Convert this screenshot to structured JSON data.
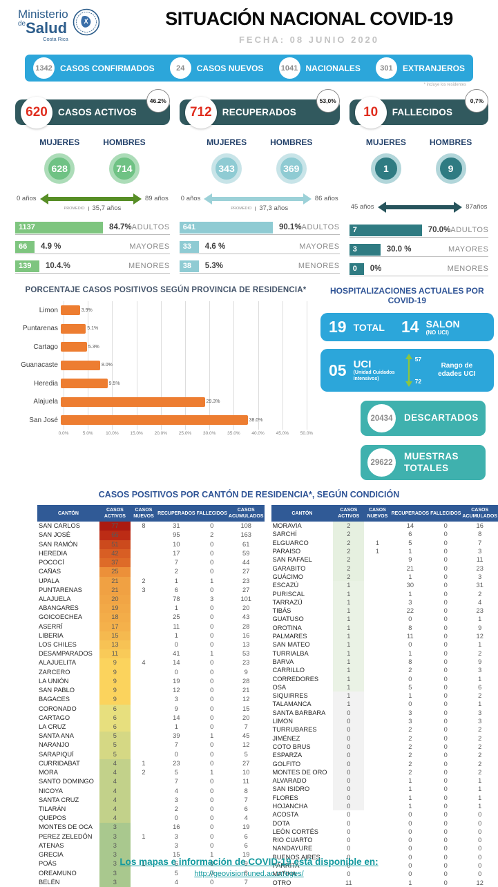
{
  "header": {
    "ministry": {
      "line1": "Ministerio",
      "de": "de",
      "line2": "Salud",
      "line3": "Costa Rica"
    },
    "title": "SITUACIÓN NACIONAL COVID-19",
    "date": "FECHA: 08 JUNIO 2020"
  },
  "summary_bar": {
    "color": "#2CA6DA",
    "items": [
      {
        "value": "1342",
        "label": "CASOS CONFIRMADOS"
      },
      {
        "value": "24",
        "label": "CASOS NUEVOS"
      },
      {
        "value": "1041",
        "label": "NACIONALES"
      },
      {
        "value": "301",
        "label": "EXTRANJEROS"
      }
    ],
    "footnote": "* incluye los residentes"
  },
  "panels": [
    {
      "value": "620",
      "label": "CASOS ACTIVOS",
      "percent": "46.2%",
      "gender": {
        "mujeres_label": "MUJERES",
        "hombres_label": "HOMBRES",
        "mujeres": "628",
        "hombres": "714"
      },
      "age": {
        "min": "0 años",
        "max": "89 años",
        "promedio_label": "PROMEDIO",
        "promedio": "35,7 años"
      },
      "breakdown": [
        {
          "value": "1137",
          "percent": "84.7%",
          "label": "ADULTOS",
          "pct": 84.7
        },
        {
          "value": "66",
          "percent": "4.9 %",
          "label": "MAYORES",
          "pct": 4.9
        },
        {
          "value": "139",
          "percent": "10.4.%",
          "label": "MENORES",
          "pct": 10.4
        }
      ],
      "colors": {
        "accent": "#6FC284",
        "ring": "#ACDCB8",
        "bar": "#7EC57F",
        "arrow": "#578E26",
        "header": "#31595E",
        "number": "#E02D1E"
      }
    },
    {
      "value": "712",
      "label": "RECUPERADOS",
      "percent": "53,0%",
      "gender": {
        "mujeres_label": "MUJERES",
        "hombres_label": "HOMBRES",
        "mujeres": "343",
        "hombres": "369"
      },
      "age": {
        "min": "0 años",
        "max": "86 años",
        "promedio_label": "PROMEDIO",
        "promedio": "37,3 años"
      },
      "breakdown": [
        {
          "value": "641",
          "percent": "90.1%",
          "label": "ADULTOS",
          "pct": 90.1
        },
        {
          "value": "33",
          "percent": "4.6 %",
          "label": "MAYORES",
          "pct": 4.6
        },
        {
          "value": "38",
          "percent": "5.3%",
          "label": "MENORES",
          "pct": 5.3
        }
      ],
      "colors": {
        "accent": "#8FCBD3",
        "ring": "#C8E4E8",
        "bar": "#8FCBD3",
        "arrow": "#9CD1D8",
        "header": "#31595E",
        "number": "#E02D1E"
      }
    },
    {
      "value": "10",
      "label": "FALLECIDOS",
      "percent": "0,7%",
      "gender": {
        "mujeres_label": "MUJERES",
        "hombres_label": "HOMBRES",
        "mujeres": "1",
        "hombres": "9"
      },
      "age": {
        "min": "45 años",
        "max": "87años",
        "promedio_label": "",
        "promedio": ""
      },
      "breakdown": [
        {
          "value": "7",
          "percent": "70.0%",
          "label": "ADULTOS",
          "pct": 70.0
        },
        {
          "value": "3",
          "percent": "30.0 %",
          "label": "MAYORES",
          "pct": 30.0
        },
        {
          "value": "0",
          "percent": "0%",
          "label": "MENORES",
          "pct": 0
        }
      ],
      "colors": {
        "accent": "#2F7B82",
        "ring": "#B2D6DA",
        "bar": "#2F7B82",
        "arrow": "#27545C",
        "header": "#31595E",
        "number": "#E02D1E"
      }
    }
  ],
  "chart_data": {
    "type": "bar",
    "orientation": "horizontal",
    "title": "PORCENTAJE CASOS POSITIVOS SEGÚN PROVINCIA DE RESIDENCIA*",
    "categories": [
      "Limon",
      "Puntarenas",
      "Cartago",
      "Guanacaste",
      "Heredia",
      "Alajuela",
      "San José"
    ],
    "values": [
      3.9,
      5.1,
      5.3,
      8.0,
      9.5,
      29.3,
      38.0
    ],
    "value_labels": [
      "3.9%",
      "5.1%",
      "5.3%",
      "8.0%",
      "9.5%",
      "29.3%",
      "38.0%"
    ],
    "xlim": [
      0,
      50
    ],
    "x_ticks": [
      "0.0%",
      "5.0%",
      "10.0%",
      "15.0%",
      "20.0%",
      "25.0%",
      "30.0%",
      "35.0%",
      "40.0%",
      "45.0%",
      "50.0%"
    ],
    "bar_color": "#ED7D31",
    "grid": true,
    "legend": false
  },
  "hospital": {
    "title": "HOSPITALIZACIONES ACTUALES POR COVID-19",
    "box_color": "#2CA6DA",
    "teal_color": "#3FB1AE",
    "total": {
      "value": "19",
      "label": "TOTAL"
    },
    "salon": {
      "value": "14",
      "label": "SALON",
      "sublabel": "(NO UCI)"
    },
    "uci": {
      "value": "05",
      "label": "UCI",
      "sublabel": "(Unidad Cuidados Intensivos)",
      "range_top": "57",
      "range_bottom": "72",
      "range_label": "Rango de edades UCI",
      "arrow_color": "#8DC63F"
    },
    "descartados": {
      "value": "20434",
      "label": "DESCARTADOS"
    },
    "muestras": {
      "value": "29622",
      "label": "MUESTRAS TOTALES"
    }
  },
  "cantons": {
    "title": "CASOS POSITIVOS POR CANTÓN DE RESIDENCIA*, SEGÚN CONDICIÓN",
    "header_color": "#305A96",
    "columns": [
      "CANTÓN",
      "CASOS ACTIVOS",
      "CASOS NUEVOS",
      "RECUPERADOS",
      "FALLECIDOS",
      "CASOS ACUMULADOS"
    ],
    "left_rows": [
      [
        "SAN CARLOS",
        "77",
        "8",
        "31",
        "0",
        "108",
        "#AB1A10"
      ],
      [
        "SAN JOSÉ",
        "66",
        "",
        "95",
        "2",
        "163",
        "#BC2C15"
      ],
      [
        "SAN RAMÓN",
        "51",
        "",
        "10",
        "0",
        "61",
        "#CC4A1D"
      ],
      [
        "HEREDIA",
        "42",
        "",
        "17",
        "0",
        "59",
        "#D85E24"
      ],
      [
        "POCOCÍ",
        "37",
        "",
        "7",
        "0",
        "44",
        "#DE6B28"
      ],
      [
        "CAÑAS",
        "25",
        "",
        "2",
        "0",
        "27",
        "#EC9039"
      ],
      [
        "UPALA",
        "21",
        "2",
        "1",
        "1",
        "23",
        "#F0A143"
      ],
      [
        "PUNTARENAS",
        "21",
        "3",
        "6",
        "0",
        "27",
        "#F0A143"
      ],
      [
        "ALAJUELA",
        "20",
        "",
        "78",
        "3",
        "101",
        "#F1A545"
      ],
      [
        "ABANGARES",
        "19",
        "",
        "1",
        "0",
        "20",
        "#F2A947"
      ],
      [
        "GOICOECHEA",
        "18",
        "",
        "25",
        "0",
        "43",
        "#F3AD49"
      ],
      [
        "ASERRÍ",
        "17",
        "",
        "11",
        "0",
        "28",
        "#F4B14B"
      ],
      [
        "LIBERIA",
        "15",
        "",
        "1",
        "0",
        "16",
        "#F5B94F"
      ],
      [
        "LOS CHILES",
        "13",
        "",
        "0",
        "0",
        "13",
        "#F7C254"
      ],
      [
        "DESAMPARADOS",
        "11",
        "",
        "41",
        "1",
        "53",
        "#F9CA58"
      ],
      [
        "ALAJUELITA",
        "9",
        "4",
        "14",
        "0",
        "23",
        "#FBD35D"
      ],
      [
        "ZARCERO",
        "9",
        "",
        "0",
        "0",
        "9",
        "#FBD35D"
      ],
      [
        "LA UNIÓN",
        "9",
        "",
        "19",
        "0",
        "28",
        "#FBD35D"
      ],
      [
        "SAN PABLO",
        "9",
        "",
        "12",
        "0",
        "21",
        "#FBD35D"
      ],
      [
        "BAGACES",
        "9",
        "",
        "3",
        "0",
        "12",
        "#FBD35D"
      ],
      [
        "CORONADO",
        "6",
        "",
        "9",
        "0",
        "15",
        "#E7DF7E"
      ],
      [
        "CARTAGO",
        "6",
        "",
        "14",
        "0",
        "20",
        "#E7DF7E"
      ],
      [
        "LA CRUZ",
        "6",
        "",
        "1",
        "0",
        "7",
        "#E7DF7E"
      ],
      [
        "SANTA ANA",
        "5",
        "",
        "39",
        "1",
        "45",
        "#D5D884"
      ],
      [
        "NARANJO",
        "5",
        "",
        "7",
        "0",
        "12",
        "#D5D884"
      ],
      [
        "SARAPIQUÍ",
        "5",
        "",
        "0",
        "0",
        "5",
        "#D5D884"
      ],
      [
        "CURRIDABAT",
        "4",
        "1",
        "23",
        "0",
        "27",
        "#C2D18A"
      ],
      [
        "MORA",
        "4",
        "2",
        "5",
        "1",
        "10",
        "#C2D18A"
      ],
      [
        "SANTO DOMINGO",
        "4",
        "",
        "7",
        "0",
        "11",
        "#C2D18A"
      ],
      [
        "NICOYA",
        "4",
        "",
        "4",
        "0",
        "8",
        "#C2D18A"
      ],
      [
        "SANTA CRUZ",
        "4",
        "",
        "3",
        "0",
        "7",
        "#C2D18A"
      ],
      [
        "TILARÁN",
        "4",
        "",
        "2",
        "0",
        "6",
        "#C2D18A"
      ],
      [
        "QUEPOS",
        "4",
        "",
        "0",
        "0",
        "4",
        "#C2D18A"
      ],
      [
        "MONTES DE OCA",
        "3",
        "",
        "16",
        "0",
        "19",
        "#A9C88E"
      ],
      [
        "PEREZ ZELEDÓN",
        "3",
        "1",
        "3",
        "0",
        "6",
        "#A9C88E"
      ],
      [
        "ATENAS",
        "3",
        "",
        "3",
        "0",
        "6",
        "#A9C88E"
      ],
      [
        "GRECIA",
        "3",
        "",
        "15",
        "1",
        "19",
        "#A9C88E"
      ],
      [
        "POÁS",
        "3",
        "1",
        "6",
        "0",
        "9",
        "#A9C88E"
      ],
      [
        "OREAMUNO",
        "3",
        "",
        "5",
        "0",
        "8",
        "#A9C88E"
      ],
      [
        "BELÉN",
        "3",
        "",
        "4",
        "0",
        "7",
        "#A9C88E"
      ]
    ],
    "right_rows": [
      [
        "MORAVIA",
        "2",
        "",
        "14",
        "0",
        "16",
        "#E6F0E0"
      ],
      [
        "SARCHÍ",
        "2",
        "",
        "6",
        "0",
        "8",
        "#E6F0E0"
      ],
      [
        "ELGUARCO",
        "2",
        "1",
        "5",
        "0",
        "7",
        "#E6F0E0"
      ],
      [
        "PARAISO",
        "2",
        "1",
        "1",
        "0",
        "3",
        "#E6F0E0"
      ],
      [
        "SAN RAFAEL",
        "2",
        "",
        "9",
        "0",
        "11",
        "#E6F0E0"
      ],
      [
        "GARABITO",
        "2",
        "",
        "21",
        "0",
        "23",
        "#E6F0E0"
      ],
      [
        "GUÁCIMO",
        "2",
        "",
        "1",
        "0",
        "3",
        "#E6F0E0"
      ],
      [
        "ESCAZÚ",
        "1",
        "",
        "30",
        "0",
        "31",
        "#EAF2E5"
      ],
      [
        "PURISCAL",
        "1",
        "",
        "1",
        "0",
        "2",
        "#EAF2E5"
      ],
      [
        "TARRAZÚ",
        "1",
        "",
        "3",
        "0",
        "4",
        "#EAF2E5"
      ],
      [
        "TIBÁS",
        "1",
        "",
        "22",
        "0",
        "23",
        "#EAF2E5"
      ],
      [
        "GUATUSO",
        "1",
        "",
        "0",
        "0",
        "1",
        "#EAF2E5"
      ],
      [
        "OROTINA",
        "1",
        "",
        "8",
        "0",
        "9",
        "#EAF2E5"
      ],
      [
        "PALMARES",
        "1",
        "",
        "11",
        "0",
        "12",
        "#EAF2E5"
      ],
      [
        "SAN MATEO",
        "1",
        "",
        "0",
        "0",
        "1",
        "#EAF2E5"
      ],
      [
        "TURRIALBA",
        "1",
        "",
        "1",
        "0",
        "2",
        "#EAF2E5"
      ],
      [
        "BARVA",
        "1",
        "",
        "8",
        "0",
        "9",
        "#EAF2E5"
      ],
      [
        "CARRILLO",
        "1",
        "",
        "2",
        "0",
        "3",
        "#EAF2E5"
      ],
      [
        "CORREDORES",
        "1",
        "",
        "0",
        "0",
        "1",
        "#EAF2E5"
      ],
      [
        "OSA",
        "1",
        "",
        "5",
        "0",
        "6",
        "#EAF2E5"
      ],
      [
        "SIQUIRRES",
        "1",
        "",
        "1",
        "0",
        "2",
        "#F2F2F2"
      ],
      [
        "TALAMANCA",
        "1",
        "",
        "0",
        "0",
        "1",
        "#F2F2F2"
      ],
      [
        "SANTA BARBARA",
        "0",
        "",
        "3",
        "0",
        "3",
        "#F2F2F2"
      ],
      [
        "LIMON",
        "0",
        "",
        "3",
        "0",
        "3",
        "#F2F2F2"
      ],
      [
        "TURRUBARES",
        "0",
        "",
        "2",
        "0",
        "2",
        "#F2F2F2"
      ],
      [
        "JIMÉNEZ",
        "0",
        "",
        "2",
        "0",
        "2",
        "#F2F2F2"
      ],
      [
        "COTO BRUS",
        "0",
        "",
        "2",
        "0",
        "2",
        "#F2F2F2"
      ],
      [
        "ESPARZA",
        "0",
        "",
        "2",
        "0",
        "2",
        "#F2F2F2"
      ],
      [
        "GOLFITO",
        "0",
        "",
        "2",
        "0",
        "2",
        "#F2F2F2"
      ],
      [
        "MONTES DE ORO",
        "0",
        "",
        "2",
        "0",
        "2",
        "#F2F2F2"
      ],
      [
        "ALVARADO",
        "0",
        "",
        "1",
        "0",
        "1",
        "#F2F2F2"
      ],
      [
        "SAN ISIDRO",
        "0",
        "",
        "1",
        "0",
        "1",
        "#F2F2F2"
      ],
      [
        "FLORES",
        "0",
        "",
        "1",
        "0",
        "1",
        "#F2F2F2"
      ],
      [
        "HOJANCHA",
        "0",
        "",
        "1",
        "0",
        "1",
        "#F2F2F2"
      ],
      [
        "ACOSTA",
        "0",
        "",
        "0",
        "0",
        "0",
        ""
      ],
      [
        "DOTA",
        "0",
        "",
        "0",
        "0",
        "0",
        ""
      ],
      [
        "LEÓN CORTÉS",
        "0",
        "",
        "0",
        "0",
        "0",
        ""
      ],
      [
        "RIO CUARTO",
        "0",
        "",
        "0",
        "0",
        "0",
        ""
      ],
      [
        "NANDAYURE",
        "0",
        "",
        "0",
        "0",
        "0",
        ""
      ],
      [
        "BUENOS AIRES",
        "0",
        "",
        "0",
        "0",
        "0",
        ""
      ],
      [
        "PARRITA",
        "0",
        "",
        "0",
        "0",
        "0",
        ""
      ],
      [
        "MATINA",
        "0",
        "",
        "0",
        "0",
        "0",
        ""
      ],
      [
        "OTRO",
        "11",
        "",
        "1",
        "0",
        "12",
        ""
      ]
    ]
  },
  "footer": {
    "line1": "Los mapas e información de COVID-19 está disponible en:",
    "url": "http://geovision.uned.ac.cr/oges/"
  }
}
